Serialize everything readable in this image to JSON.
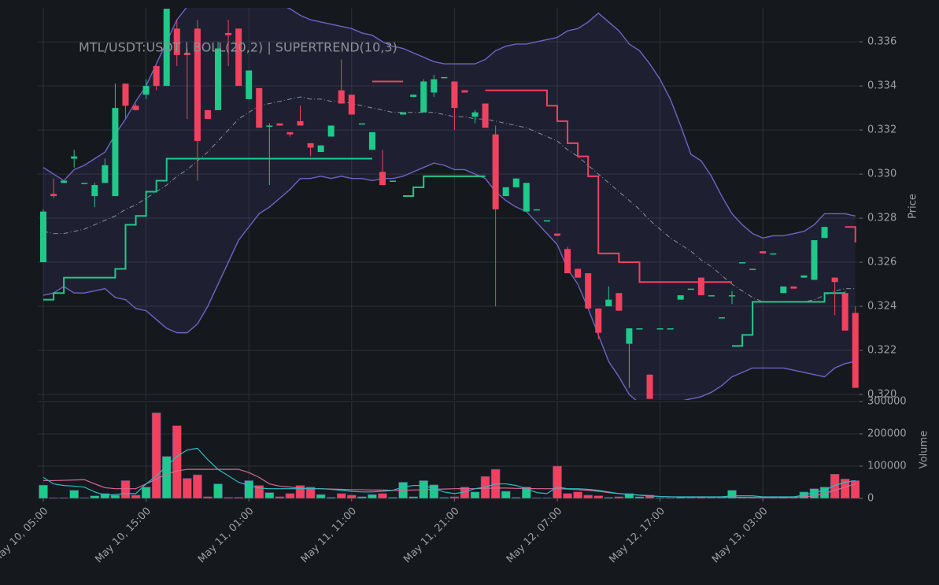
{
  "chart_data": [
    {
      "type": "candlestick",
      "title": "MTL/USDT:USDT | BOLL(20,2) | SUPERTREND(10,3)",
      "ylabel": "Price",
      "up_color": "#1ec98a",
      "down_color": "#f0425f",
      "open": [
        0.326,
        0.3291,
        0.3296,
        0.3307,
        0.3296,
        0.329,
        0.3296,
        0.329,
        0.3341,
        0.3331,
        0.3336,
        0.3349,
        0.334,
        0.3366,
        0.3355,
        0.3366,
        0.3329,
        0.3329,
        0.3364,
        0.3366,
        0.3334,
        0.3339,
        0.3322,
        0.3323,
        0.3319,
        0.3324,
        0.3314,
        0.331,
        0.3317,
        0.3338,
        0.3336,
        0.3323,
        0.3311,
        0.3301,
        0.3297,
        0.3327,
        0.3335,
        0.3328,
        0.3337,
        0.3344,
        0.3342,
        0.3338,
        0.3326,
        0.3332,
        0.3318,
        0.329,
        0.3294,
        0.3283,
        0.3284,
        0.3279,
        0.3273,
        0.3266,
        0.3257,
        0.3255,
        0.3239,
        0.324,
        0.3246,
        0.3223,
        0.323,
        0.3209,
        0.323,
        0.323,
        0.3243,
        0.3248,
        0.3253,
        0.3245,
        0.3235,
        0.3245,
        0.326,
        0.3257,
        0.3265,
        0.3264,
        0.3246,
        0.3249,
        0.3253,
        0.3252,
        0.3271,
        0.3253,
        0.3246,
        0.3237
      ],
      "high": [
        0.3284,
        0.3298,
        0.3297,
        0.3311,
        0.3296,
        0.3296,
        0.3307,
        0.3341,
        0.3341,
        0.3332,
        0.3343,
        0.3349,
        0.3375,
        0.337,
        0.3357,
        0.337,
        0.3329,
        0.336,
        0.337,
        0.3366,
        0.3347,
        0.3339,
        0.3323,
        0.3323,
        0.3319,
        0.3331,
        0.3314,
        0.3313,
        0.3322,
        0.3352,
        0.3336,
        0.3323,
        0.3319,
        0.3311,
        0.3297,
        0.3328,
        0.3336,
        0.3343,
        0.3345,
        0.3344,
        0.3342,
        0.3338,
        0.3329,
        0.3332,
        0.3322,
        0.3294,
        0.3298,
        0.3296,
        0.3284,
        0.3279,
        0.3273,
        0.3267,
        0.3257,
        0.3255,
        0.3239,
        0.3249,
        0.3246,
        0.323,
        0.323,
        0.3209,
        0.323,
        0.323,
        0.3245,
        0.3248,
        0.3253,
        0.3245,
        0.3235,
        0.3247,
        0.326,
        0.3257,
        0.3265,
        0.3264,
        0.3249,
        0.3249,
        0.3254,
        0.327,
        0.3276,
        0.3253,
        0.3247,
        0.324
      ],
      "low": [
        0.326,
        0.3289,
        0.3296,
        0.3303,
        0.3296,
        0.3285,
        0.3296,
        0.329,
        0.3325,
        0.3329,
        0.3334,
        0.3338,
        0.334,
        0.3349,
        0.3325,
        0.3297,
        0.3325,
        0.3329,
        0.3349,
        0.334,
        0.3334,
        0.3321,
        0.3295,
        0.3322,
        0.3317,
        0.3322,
        0.3308,
        0.331,
        0.3317,
        0.3332,
        0.3327,
        0.3323,
        0.3311,
        0.3295,
        0.3297,
        0.3327,
        0.3335,
        0.3328,
        0.3335,
        0.3344,
        0.332,
        0.3337,
        0.3323,
        0.3321,
        0.324,
        0.329,
        0.3294,
        0.3283,
        0.3284,
        0.3279,
        0.3272,
        0.3255,
        0.3253,
        0.3239,
        0.3225,
        0.324,
        0.3238,
        0.3203,
        0.323,
        0.3198,
        0.323,
        0.323,
        0.3243,
        0.3248,
        0.3245,
        0.3245,
        0.3235,
        0.3241,
        0.326,
        0.3257,
        0.3264,
        0.3264,
        0.3246,
        0.3248,
        0.3253,
        0.3252,
        0.3271,
        0.3236,
        0.3229,
        0.3203
      ],
      "close": [
        0.3283,
        0.329,
        0.3297,
        0.3308,
        0.3296,
        0.3295,
        0.3304,
        0.333,
        0.3331,
        0.3329,
        0.334,
        0.334,
        0.3375,
        0.3354,
        0.3354,
        0.3315,
        0.3325,
        0.3357,
        0.3363,
        0.334,
        0.3347,
        0.3321,
        0.3322,
        0.3322,
        0.3318,
        0.3322,
        0.3312,
        0.3313,
        0.3322,
        0.3332,
        0.3327,
        0.3323,
        0.3319,
        0.3295,
        0.3297,
        0.3328,
        0.3336,
        0.3342,
        0.3343,
        0.3344,
        0.333,
        0.3337,
        0.3328,
        0.3321,
        0.3284,
        0.3294,
        0.3298,
        0.3296,
        0.3284,
        0.3279,
        0.3272,
        0.3255,
        0.3253,
        0.3239,
        0.3228,
        0.3243,
        0.3238,
        0.323,
        0.323,
        0.3198,
        0.323,
        0.323,
        0.3245,
        0.3248,
        0.3245,
        0.3245,
        0.3235,
        0.3245,
        0.326,
        0.3257,
        0.3264,
        0.3264,
        0.3249,
        0.3248,
        0.3254,
        0.327,
        0.3276,
        0.3251,
        0.3229,
        0.3203
      ],
      "bollinger": {
        "color": "#7062c6",
        "middle_color": "#8a8d92",
        "fill": "rgba(92,88,190,0.13)",
        "upper": [
          0.3303,
          0.33,
          0.3297,
          0.3302,
          0.3304,
          0.3307,
          0.331,
          0.3318,
          0.3325,
          0.3333,
          0.334,
          0.335,
          0.336,
          0.337,
          0.3376,
          0.338,
          0.338,
          0.338,
          0.338,
          0.338,
          0.338,
          0.338,
          0.3379,
          0.3377,
          0.3375,
          0.3372,
          0.337,
          0.3369,
          0.3368,
          0.3367,
          0.3366,
          0.3364,
          0.3363,
          0.336,
          0.3358,
          0.3357,
          0.3355,
          0.3353,
          0.3351,
          0.335,
          0.335,
          0.335,
          0.335,
          0.3352,
          0.3356,
          0.3358,
          0.3359,
          0.3359,
          0.336,
          0.3361,
          0.3362,
          0.3365,
          0.3366,
          0.3369,
          0.3373,
          0.3369,
          0.3365,
          0.3359,
          0.3356,
          0.335,
          0.3343,
          0.3334,
          0.3322,
          0.3309,
          0.3306,
          0.3299,
          0.329,
          0.3282,
          0.3277,
          0.3273,
          0.3271,
          0.3272,
          0.3272,
          0.3273,
          0.3274,
          0.3277,
          0.3282,
          0.3282,
          0.3282,
          0.3281
        ],
        "middle": [
          0.3274,
          0.3273,
          0.3273,
          0.3274,
          0.3275,
          0.3277,
          0.3279,
          0.3281,
          0.3284,
          0.3286,
          0.3289,
          0.3292,
          0.3295,
          0.3299,
          0.3302,
          0.3306,
          0.331,
          0.3315,
          0.332,
          0.3325,
          0.3328,
          0.3331,
          0.3332,
          0.3333,
          0.3334,
          0.3335,
          0.3334,
          0.3334,
          0.3333,
          0.3333,
          0.3332,
          0.3331,
          0.333,
          0.3329,
          0.3328,
          0.3328,
          0.3328,
          0.3328,
          0.3328,
          0.3327,
          0.3326,
          0.3326,
          0.3325,
          0.3325,
          0.3324,
          0.3323,
          0.3322,
          0.3321,
          0.3319,
          0.3317,
          0.3315,
          0.3311,
          0.3308,
          0.3304,
          0.33,
          0.3296,
          0.3292,
          0.3288,
          0.3284,
          0.3279,
          0.3275,
          0.3271,
          0.3268,
          0.3265,
          0.3261,
          0.3258,
          0.3254,
          0.325,
          0.3247,
          0.3244,
          0.3242,
          0.3242,
          0.3242,
          0.3242,
          0.3242,
          0.3243,
          0.3245,
          0.3247,
          0.3248,
          0.3248
        ],
        "lower": [
          0.3245,
          0.3246,
          0.3249,
          0.3246,
          0.3246,
          0.3247,
          0.3248,
          0.3244,
          0.3243,
          0.3239,
          0.3238,
          0.3234,
          0.323,
          0.3228,
          0.3228,
          0.3232,
          0.324,
          0.325,
          0.326,
          0.327,
          0.3276,
          0.3282,
          0.3285,
          0.3289,
          0.3293,
          0.3298,
          0.3298,
          0.3299,
          0.3298,
          0.3299,
          0.3298,
          0.3298,
          0.3297,
          0.3298,
          0.3298,
          0.3299,
          0.3301,
          0.3303,
          0.3305,
          0.3304,
          0.3302,
          0.3302,
          0.33,
          0.3298,
          0.3292,
          0.3288,
          0.3285,
          0.3283,
          0.3278,
          0.3273,
          0.3268,
          0.3257,
          0.325,
          0.3239,
          0.3227,
          0.3215,
          0.3208,
          0.32,
          0.3196,
          0.3194,
          0.3194,
          0.3195,
          0.3197,
          0.3198,
          0.3199,
          0.3201,
          0.3204,
          0.3208,
          0.321,
          0.3212,
          0.3212,
          0.3212,
          0.3212,
          0.3211,
          0.321,
          0.3209,
          0.3208,
          0.3212,
          0.3214,
          0.3215
        ]
      },
      "supertrend": {
        "up_color": "#1ec98a",
        "down_color": "#f0425f",
        "up": [
          0.3243,
          0.3246,
          0.3253,
          0.3253,
          0.3253,
          0.3253,
          0.3253,
          0.3257,
          0.3277,
          0.3281,
          0.3292,
          0.3297,
          0.3307,
          0.3307,
          0.3307,
          0.3307,
          0.3307,
          0.3307,
          0.3307,
          0.3307,
          0.3307,
          0.3307,
          0.3307,
          0.3307,
          0.3307,
          0.3307,
          0.3307,
          0.3307,
          0.3307,
          0.3307,
          0.3307,
          0.3307,
          0.3307,
          null,
          null,
          0.329,
          0.3294,
          0.3299,
          0.3299,
          0.3299,
          0.3299,
          0.3299,
          0.3299,
          0.3299,
          null,
          null,
          null,
          null,
          null,
          null,
          null,
          null,
          null,
          null,
          null,
          null,
          null,
          null,
          null,
          null,
          null,
          null,
          null,
          null,
          null,
          null,
          null,
          0.3222,
          0.3227,
          0.3242,
          0.3242,
          0.3242,
          0.3242,
          0.3242,
          0.3242,
          0.3242,
          0.3246,
          0.3246,
          0.3246,
          null
        ],
        "down": [
          null,
          null,
          null,
          null,
          null,
          null,
          null,
          null,
          null,
          null,
          null,
          null,
          null,
          null,
          null,
          null,
          null,
          null,
          null,
          null,
          null,
          null,
          null,
          null,
          null,
          null,
          null,
          null,
          null,
          null,
          null,
          null,
          0.3342,
          0.3342,
          0.3342,
          0.3342,
          null,
          null,
          null,
          null,
          null,
          null,
          null,
          0.3338,
          0.3338,
          0.3338,
          0.3338,
          0.3338,
          0.3338,
          0.3331,
          0.3324,
          0.3314,
          0.3308,
          0.3299,
          0.3264,
          0.3264,
          0.326,
          0.326,
          0.3251,
          0.3251,
          0.3251,
          0.3251,
          0.3251,
          0.3251,
          0.3251,
          0.3251,
          0.3251,
          0.3251,
          null,
          null,
          null,
          null,
          null,
          null,
          null,
          null,
          null,
          null,
          0.3276,
          0.3269
        ]
      },
      "ylim": [
        0.31975,
        0.33754
      ],
      "yticks": [
        {
          "value": 0.32,
          "label": "0.320"
        },
        {
          "value": 0.322,
          "label": "0.322"
        },
        {
          "value": 0.324,
          "label": "0.324"
        },
        {
          "value": 0.326,
          "label": "0.326"
        },
        {
          "value": 0.328,
          "label": "0.328"
        },
        {
          "value": 0.33,
          "label": "0.330"
        },
        {
          "value": 0.332,
          "label": "0.332"
        },
        {
          "value": 0.334,
          "label": "0.334"
        },
        {
          "value": 0.336,
          "label": "0.336"
        }
      ],
      "grid": true
    },
    {
      "type": "bar",
      "ylabel": "Volume",
      "categories": [
        "May 10, 05:00",
        null,
        null,
        null,
        null,
        null,
        null,
        null,
        null,
        null,
        "May 10, 15:00",
        null,
        null,
        null,
        null,
        null,
        null,
        null,
        null,
        null,
        "May 11, 01:00",
        null,
        null,
        null,
        null,
        null,
        null,
        null,
        null,
        null,
        "May 11, 11:00",
        null,
        null,
        null,
        null,
        null,
        null,
        null,
        null,
        null,
        "May 11, 21:00",
        null,
        null,
        null,
        null,
        null,
        null,
        null,
        null,
        null,
        "May 12, 07:00",
        null,
        null,
        null,
        null,
        null,
        null,
        null,
        null,
        null,
        "May 12, 17:00",
        null,
        null,
        null,
        null,
        null,
        null,
        null,
        null,
        null,
        "May 13, 03:00",
        null,
        null,
        null,
        null,
        null,
        null,
        null,
        null,
        null
      ],
      "values": [
        41000,
        2000,
        2000,
        25000,
        2000,
        8000,
        15000,
        10000,
        55000,
        10000,
        35000,
        265000,
        130000,
        225000,
        62000,
        73000,
        5000,
        45000,
        3000,
        3000,
        55000,
        40000,
        18000,
        5000,
        15000,
        40000,
        35000,
        12000,
        3000,
        15000,
        10000,
        5000,
        12000,
        15000,
        3000,
        50000,
        5000,
        55000,
        42000,
        3000,
        5000,
        35000,
        20000,
        68000,
        90000,
        22000,
        3000,
        35000,
        2000,
        2000,
        100000,
        15000,
        20000,
        10000,
        8000,
        3000,
        5000,
        15000,
        5000,
        10000,
        2000,
        2000,
        3000,
        2000,
        3000,
        2000,
        2000,
        25000,
        2000,
        2000,
        3000,
        2000,
        5000,
        3000,
        20000,
        30000,
        35000,
        75000,
        60000,
        55000
      ],
      "lines": [
        {
          "color": "#d9669a",
          "values": [
            55000,
            55000,
            56000,
            57000,
            58000,
            45000,
            33000,
            30000,
            30000,
            30000,
            45000,
            60000,
            75000,
            85000,
            90000,
            90000,
            90000,
            90000,
            90000,
            90000,
            80000,
            65000,
            45000,
            38000,
            35000,
            32000,
            30000,
            30000,
            29000,
            28000,
            27000,
            27000,
            26000,
            26000,
            25000,
            25000,
            26000,
            27000,
            28000,
            29000,
            30000,
            30000,
            30000,
            31000,
            32000,
            32000,
            31000,
            31000,
            30000,
            30000,
            30000,
            29000,
            27000,
            25000,
            22000,
            18000,
            15000,
            13000,
            10000,
            8000,
            6000,
            5000,
            4000,
            4000,
            4000,
            4000,
            4000,
            4000,
            3000,
            3000,
            3000,
            3000,
            3000,
            3000,
            5000,
            8000,
            15000,
            25000,
            35000,
            45000
          ]
        },
        {
          "color": "#2bbcc4",
          "values": [
            65000,
            45000,
            40000,
            38000,
            35000,
            20000,
            10000,
            12000,
            15000,
            15000,
            45000,
            70000,
            100000,
            130000,
            150000,
            155000,
            120000,
            90000,
            70000,
            50000,
            40000,
            32000,
            30000,
            30000,
            30000,
            30000,
            30000,
            30000,
            28000,
            25000,
            22000,
            20000,
            20000,
            22000,
            25000,
            35000,
            40000,
            40000,
            30000,
            20000,
            15000,
            20000,
            30000,
            35000,
            45000,
            45000,
            40000,
            30000,
            18000,
            15000,
            35000,
            30000,
            30000,
            28000,
            25000,
            20000,
            15000,
            12000,
            10000,
            8000,
            6000,
            5000,
            5000,
            5000,
            5000,
            5000,
            5000,
            8000,
            8000,
            8000,
            5000,
            5000,
            5000,
            5000,
            10000,
            18000,
            25000,
            40000,
            50000,
            55000
          ]
        }
      ],
      "ylim": [
        0,
        300000
      ],
      "yticks": [
        0,
        100000,
        200000,
        300000
      ],
      "grid": true
    }
  ]
}
